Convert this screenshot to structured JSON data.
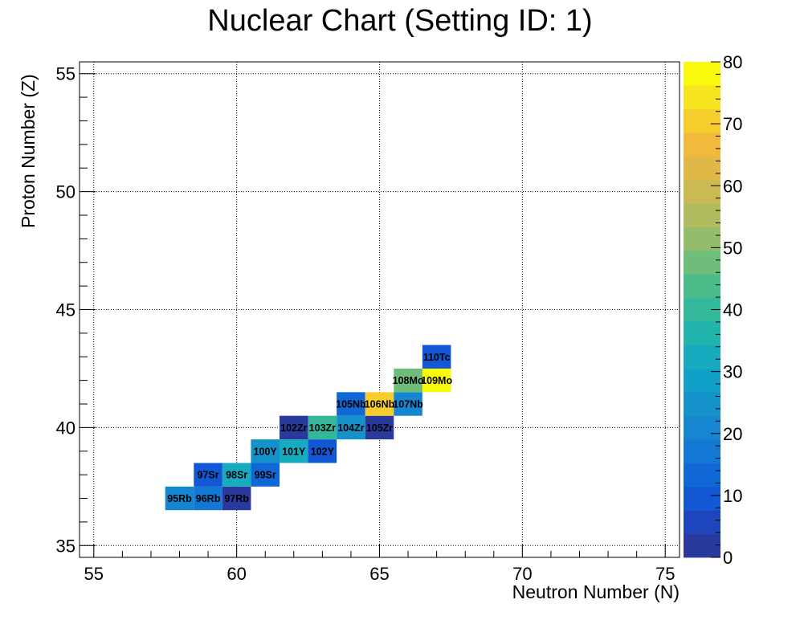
{
  "chart_data": {
    "type": "heatmap",
    "title": "Nuclear Chart (Setting ID: 1)",
    "xlabel": "Neutron Number (N)",
    "ylabel": "Proton Number (Z)",
    "xlim": [
      54.5,
      75.5
    ],
    "ylim": [
      34.5,
      55.5
    ],
    "x_ticks": [
      55,
      60,
      65,
      70,
      75
    ],
    "y_ticks": [
      35,
      40,
      45,
      50,
      55
    ],
    "grid": true,
    "colorscale": {
      "min": 0,
      "max": 80,
      "ticks": [
        0,
        10,
        20,
        30,
        40,
        50,
        60,
        70,
        80
      ],
      "colors": [
        "#2a3a9c",
        "#1d46bd",
        "#1257d4",
        "#0f68d6",
        "#1378d3",
        "#1786d0",
        "#1492c9",
        "#10a0c8",
        "#18abbf",
        "#22b3ad",
        "#33b89c",
        "#4bbb8a",
        "#6fbd7a",
        "#94bd6b",
        "#b2bb5e",
        "#cbb953",
        "#dfb848",
        "#f1ba3c",
        "#f7cd2d",
        "#f6e420",
        "#f9f90e"
      ]
    },
    "cells": [
      {
        "label": "95Rb",
        "n": 58,
        "z": 37,
        "value": 20
      },
      {
        "label": "96Rb",
        "n": 59,
        "z": 37,
        "value": 17
      },
      {
        "label": "97Rb",
        "n": 60,
        "z": 37,
        "value": 2
      },
      {
        "label": "97Sr",
        "n": 59,
        "z": 38,
        "value": 10
      },
      {
        "label": "98Sr",
        "n": 60,
        "z": 38,
        "value": 33
      },
      {
        "label": "99Sr",
        "n": 61,
        "z": 38,
        "value": 13
      },
      {
        "label": "100Y",
        "n": 61,
        "z": 39,
        "value": 24
      },
      {
        "label": "101Y",
        "n": 62,
        "z": 39,
        "value": 31
      },
      {
        "label": "102Y",
        "n": 63,
        "z": 39,
        "value": 9
      },
      {
        "label": "102Zr",
        "n": 62,
        "z": 40,
        "value": 1
      },
      {
        "label": "103Zr",
        "n": 63,
        "z": 40,
        "value": 40
      },
      {
        "label": "104Zr",
        "n": 64,
        "z": 40,
        "value": 24
      },
      {
        "label": "105Zr",
        "n": 65,
        "z": 40,
        "value": 2
      },
      {
        "label": "105Nb",
        "n": 64,
        "z": 41,
        "value": 15
      },
      {
        "label": "106Nb",
        "n": 65,
        "z": 41,
        "value": 71
      },
      {
        "label": "107Nb",
        "n": 66,
        "z": 41,
        "value": 20
      },
      {
        "label": "108Mo",
        "n": 66,
        "z": 42,
        "value": 47
      },
      {
        "label": "109Mo",
        "n": 67,
        "z": 42,
        "value": 80
      },
      {
        "label": "110Tc",
        "n": 67,
        "z": 43,
        "value": 9
      }
    ]
  }
}
